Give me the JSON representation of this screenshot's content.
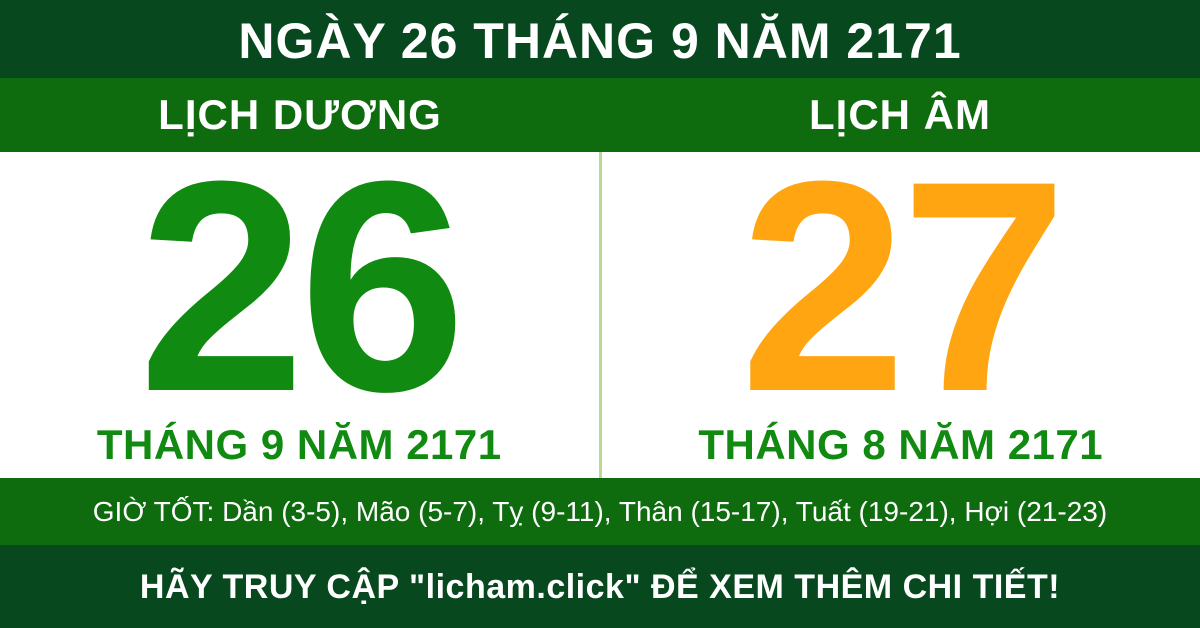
{
  "header": {
    "title": "NGÀY 26 THÁNG 9 NĂM 2171"
  },
  "tabs": {
    "solar_label": "LỊCH DƯƠNG",
    "lunar_label": "LỊCH ÂM"
  },
  "solar": {
    "day": "26",
    "month_year": "THÁNG 9 NĂM 2171"
  },
  "lunar": {
    "day": "27",
    "month_year": "THÁNG 8 NĂM 2171"
  },
  "good_hours": {
    "text": "GIỜ TỐT: Dần (3-5), Mão (5-7), Tỵ (9-11), Thân (15-17), Tuất (19-21), Hợi (21-23)"
  },
  "footer": {
    "cta": "HÃY TRUY CẬP \"licham.click\" ĐỂ XEM THÊM CHI TIẾT!"
  },
  "colors": {
    "dark_green": "#07481f",
    "green": "#0e6b0e",
    "day_green": "#108a10",
    "day_orange": "#ffa512",
    "divider_green": "#b7db90",
    "white": "#ffffff"
  }
}
